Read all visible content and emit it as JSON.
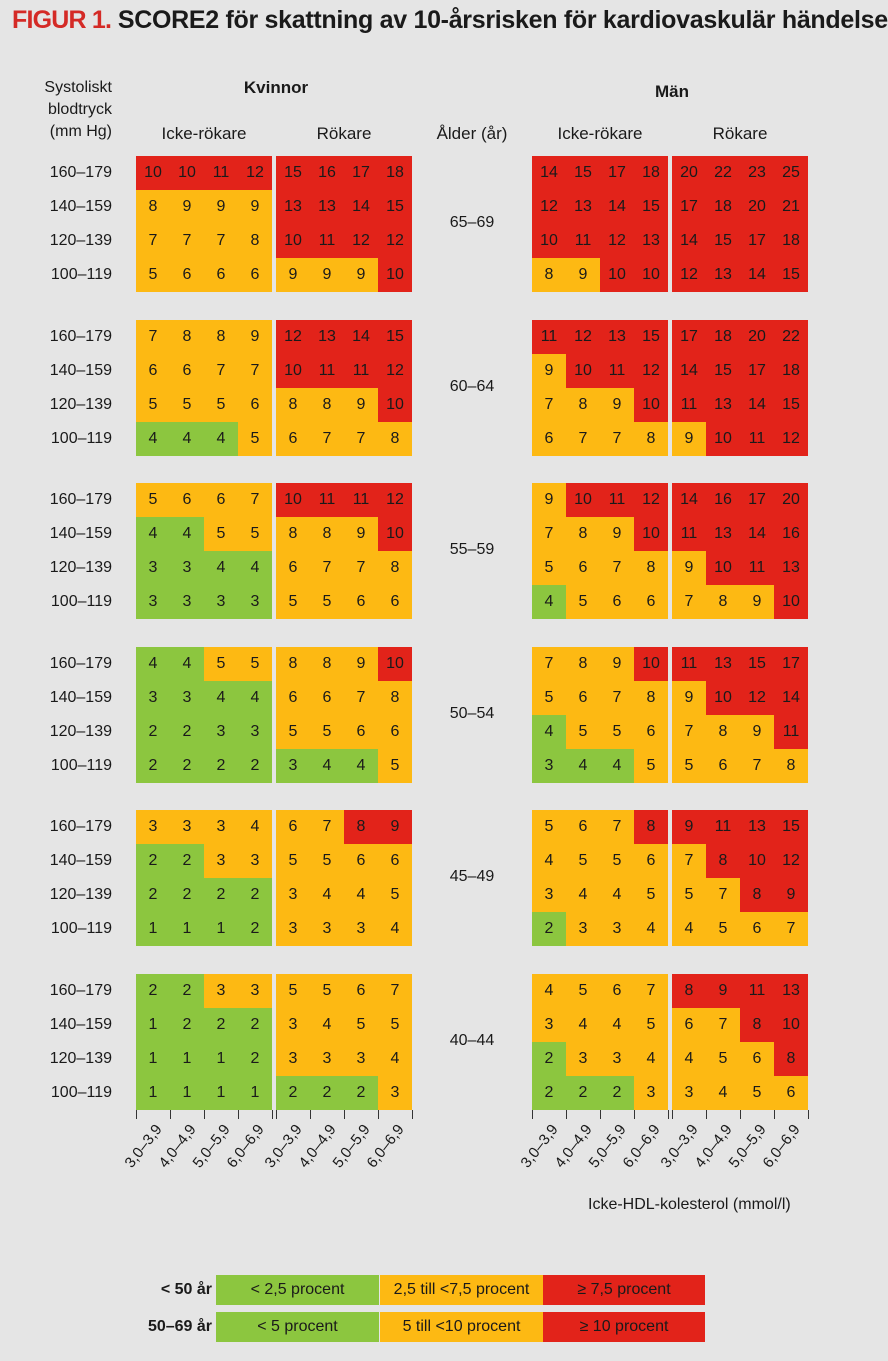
{
  "title": {
    "prefix": "FIGUR 1.",
    "text": "SCORE2 för skattning av 10-årsrisken för kardiovaskulär händelse"
  },
  "headers": {
    "sbp_label": [
      "Systoliskt",
      "blodtryck",
      "(mm Hg)"
    ],
    "women": "Kvinnor",
    "men": "Män",
    "non_smoker": "Icke-rökare",
    "smoker": "Rökare",
    "age": "Ålder (år)"
  },
  "x_axis_title": "Icke-HDL-kolesterol (mmol/l)",
  "colors": {
    "green": "#8cc63f",
    "orange": "#fdb913",
    "red": "#e2231a"
  },
  "legend": [
    {
      "label": "< 50 år",
      "items": [
        {
          "text": "< 2,5 procent",
          "color": "green"
        },
        {
          "text": "2,5 till <7,5 procent",
          "color": "orange"
        },
        {
          "text": "≥ 7,5 procent",
          "color": "red"
        }
      ]
    },
    {
      "label": "50–69 år",
      "items": [
        {
          "text": "< 5 procent",
          "color": "green"
        },
        {
          "text": "5 till <10 procent",
          "color": "orange"
        },
        {
          "text": "≥ 10 procent",
          "color": "red"
        }
      ]
    }
  ],
  "chart_data": {
    "type": "heatmap",
    "title": "SCORE2 för skattning av 10-årsrisken för kardiovaskulär händelse",
    "xlabel": "Icke-HDL-kolesterol (mmol/l)",
    "ylabel": "Systoliskt blodtryck (mm Hg)",
    "x_categories": [
      "3,0–3,9",
      "4,0–4,9",
      "5,0–5,9",
      "6,0–6,9"
    ],
    "sbp_categories": [
      "160–179",
      "140–159",
      "120–139",
      "100–119"
    ],
    "groups": [
      "Kvinnor Icke-rökare",
      "Kvinnor Rökare",
      "Män Icke-rökare",
      "Män Rökare"
    ],
    "age_bands": [
      {
        "age": "65–69",
        "grids": [
          [
            [
              10,
              10,
              11,
              12
            ],
            [
              8,
              9,
              9,
              9
            ],
            [
              7,
              7,
              7,
              8
            ],
            [
              5,
              6,
              6,
              6
            ]
          ],
          [
            [
              15,
              16,
              17,
              18
            ],
            [
              13,
              13,
              14,
              15
            ],
            [
              10,
              11,
              12,
              12
            ],
            [
              9,
              9,
              9,
              10
            ]
          ],
          [
            [
              14,
              15,
              17,
              18
            ],
            [
              12,
              13,
              14,
              15
            ],
            [
              10,
              11,
              12,
              13
            ],
            [
              8,
              9,
              10,
              10
            ]
          ],
          [
            [
              20,
              22,
              23,
              25
            ],
            [
              17,
              18,
              20,
              21
            ],
            [
              14,
              15,
              17,
              18
            ],
            [
              12,
              13,
              14,
              15
            ]
          ]
        ],
        "colors": [
          [
            "RRRR",
            "OOOO",
            "OOOO",
            "OOOO"
          ],
          [
            "RRRR",
            "RRRR",
            "RRRR",
            "OOOR"
          ],
          [
            "RRRR",
            "RRRR",
            "RRRR",
            "OORR"
          ],
          [
            "RRRR",
            "RRRR",
            "RRRR",
            "RRRR"
          ]
        ]
      },
      {
        "age": "60–64",
        "grids": [
          [
            [
              7,
              8,
              8,
              9
            ],
            [
              6,
              6,
              7,
              7
            ],
            [
              5,
              5,
              5,
              6
            ],
            [
              4,
              4,
              4,
              5
            ]
          ],
          [
            [
              12,
              13,
              14,
              15
            ],
            [
              10,
              11,
              11,
              12
            ],
            [
              8,
              8,
              9,
              10
            ],
            [
              6,
              7,
              7,
              8
            ]
          ],
          [
            [
              11,
              12,
              13,
              15
            ],
            [
              9,
              10,
              11,
              12
            ],
            [
              7,
              8,
              9,
              10
            ],
            [
              6,
              7,
              7,
              8
            ]
          ],
          [
            [
              17,
              18,
              20,
              22
            ],
            [
              14,
              15,
              17,
              18
            ],
            [
              11,
              13,
              14,
              15
            ],
            [
              9,
              10,
              11,
              12
            ]
          ]
        ],
        "colors": [
          [
            "OOOO",
            "OOOO",
            "OOOO",
            "GGGO"
          ],
          [
            "RRRR",
            "RRRR",
            "OOOR",
            "OOOO"
          ],
          [
            "RRRR",
            "ORRR",
            "OOOR",
            "OOOO"
          ],
          [
            "RRRR",
            "RRRR",
            "RRRR",
            "ORRR"
          ]
        ]
      },
      {
        "age": "55–59",
        "grids": [
          [
            [
              5,
              6,
              6,
              7
            ],
            [
              4,
              4,
              5,
              5
            ],
            [
              3,
              3,
              4,
              4
            ],
            [
              3,
              3,
              3,
              3
            ]
          ],
          [
            [
              10,
              11,
              11,
              12
            ],
            [
              8,
              8,
              9,
              10
            ],
            [
              6,
              7,
              7,
              8
            ],
            [
              5,
              5,
              6,
              6
            ]
          ],
          [
            [
              9,
              10,
              11,
              12
            ],
            [
              7,
              8,
              9,
              10
            ],
            [
              5,
              6,
              7,
              8
            ],
            [
              4,
              5,
              6,
              6
            ]
          ],
          [
            [
              14,
              16,
              17,
              20
            ],
            [
              11,
              13,
              14,
              16
            ],
            [
              9,
              10,
              11,
              13
            ],
            [
              7,
              8,
              9,
              10
            ]
          ]
        ],
        "colors": [
          [
            "OOOO",
            "GGOO",
            "GGGG",
            "GGGG"
          ],
          [
            "RRRR",
            "OOOR",
            "OOOO",
            "OOOO"
          ],
          [
            "ORRR",
            "OOOR",
            "OOOO",
            "GOOO"
          ],
          [
            "RRRR",
            "RRRR",
            "ORRR",
            "OOOR"
          ]
        ]
      },
      {
        "age": "50–54",
        "grids": [
          [
            [
              4,
              4,
              5,
              5
            ],
            [
              3,
              3,
              4,
              4
            ],
            [
              2,
              2,
              3,
              3
            ],
            [
              2,
              2,
              2,
              2
            ]
          ],
          [
            [
              8,
              8,
              9,
              10
            ],
            [
              6,
              6,
              7,
              8
            ],
            [
              5,
              5,
              6,
              6
            ],
            [
              3,
              4,
              4,
              5
            ]
          ],
          [
            [
              7,
              8,
              9,
              10
            ],
            [
              5,
              6,
              7,
              8
            ],
            [
              4,
              5,
              5,
              6
            ],
            [
              3,
              4,
              4,
              5
            ]
          ],
          [
            [
              11,
              13,
              15,
              17
            ],
            [
              9,
              10,
              12,
              14
            ],
            [
              7,
              8,
              9,
              11
            ],
            [
              5,
              6,
              7,
              8
            ]
          ]
        ],
        "colors": [
          [
            "GGOO",
            "GGGG",
            "GGGG",
            "GGGG"
          ],
          [
            "OOOR",
            "OOOO",
            "OOOO",
            "GGGO"
          ],
          [
            "OOOR",
            "OOOO",
            "GOOO",
            "GGGO"
          ],
          [
            "RRRR",
            "ORRR",
            "OOOR",
            "OOOO"
          ]
        ]
      },
      {
        "age": "45–49",
        "grids": [
          [
            [
              3,
              3,
              3,
              4
            ],
            [
              2,
              2,
              3,
              3
            ],
            [
              2,
              2,
              2,
              2
            ],
            [
              1,
              1,
              1,
              2
            ]
          ],
          [
            [
              6,
              7,
              8,
              9
            ],
            [
              5,
              5,
              6,
              6
            ],
            [
              3,
              4,
              4,
              5
            ],
            [
              3,
              3,
              3,
              4
            ]
          ],
          [
            [
              5,
              6,
              7,
              8
            ],
            [
              4,
              5,
              5,
              6
            ],
            [
              3,
              4,
              4,
              5
            ],
            [
              2,
              3,
              3,
              4
            ]
          ],
          [
            [
              9,
              11,
              13,
              15
            ],
            [
              7,
              8,
              10,
              12
            ],
            [
              5,
              7,
              8,
              9
            ],
            [
              4,
              5,
              6,
              7
            ]
          ]
        ],
        "colors": [
          [
            "OOOO",
            "GGOO",
            "GGGG",
            "GGGG"
          ],
          [
            "OORR",
            "OOOO",
            "OOOO",
            "OOOO"
          ],
          [
            "OOOR",
            "OOOO",
            "OOOO",
            "GOOO"
          ],
          [
            "RRRR",
            "ORRR",
            "OORR",
            "OOOO"
          ]
        ]
      },
      {
        "age": "40–44",
        "grids": [
          [
            [
              2,
              2,
              3,
              3
            ],
            [
              1,
              2,
              2,
              2
            ],
            [
              1,
              1,
              1,
              2
            ],
            [
              1,
              1,
              1,
              1
            ]
          ],
          [
            [
              5,
              5,
              6,
              7
            ],
            [
              3,
              4,
              5,
              5
            ],
            [
              3,
              3,
              3,
              4
            ],
            [
              2,
              2,
              2,
              3
            ]
          ],
          [
            [
              4,
              5,
              6,
              7
            ],
            [
              3,
              4,
              4,
              5
            ],
            [
              2,
              3,
              3,
              4
            ],
            [
              2,
              2,
              2,
              3
            ]
          ],
          [
            [
              8,
              9,
              11,
              13
            ],
            [
              6,
              7,
              8,
              10
            ],
            [
              4,
              5,
              6,
              8
            ],
            [
              3,
              4,
              5,
              6
            ]
          ]
        ],
        "colors": [
          [
            "GGOO",
            "GGGG",
            "GGGG",
            "GGGG"
          ],
          [
            "OOOO",
            "OOOO",
            "OOOO",
            "GGGO"
          ],
          [
            "OOOO",
            "OOOO",
            "GOOO",
            "GGGO"
          ],
          [
            "RRRR",
            "OORR",
            "OOOR",
            "OOOO"
          ]
        ]
      }
    ]
  }
}
